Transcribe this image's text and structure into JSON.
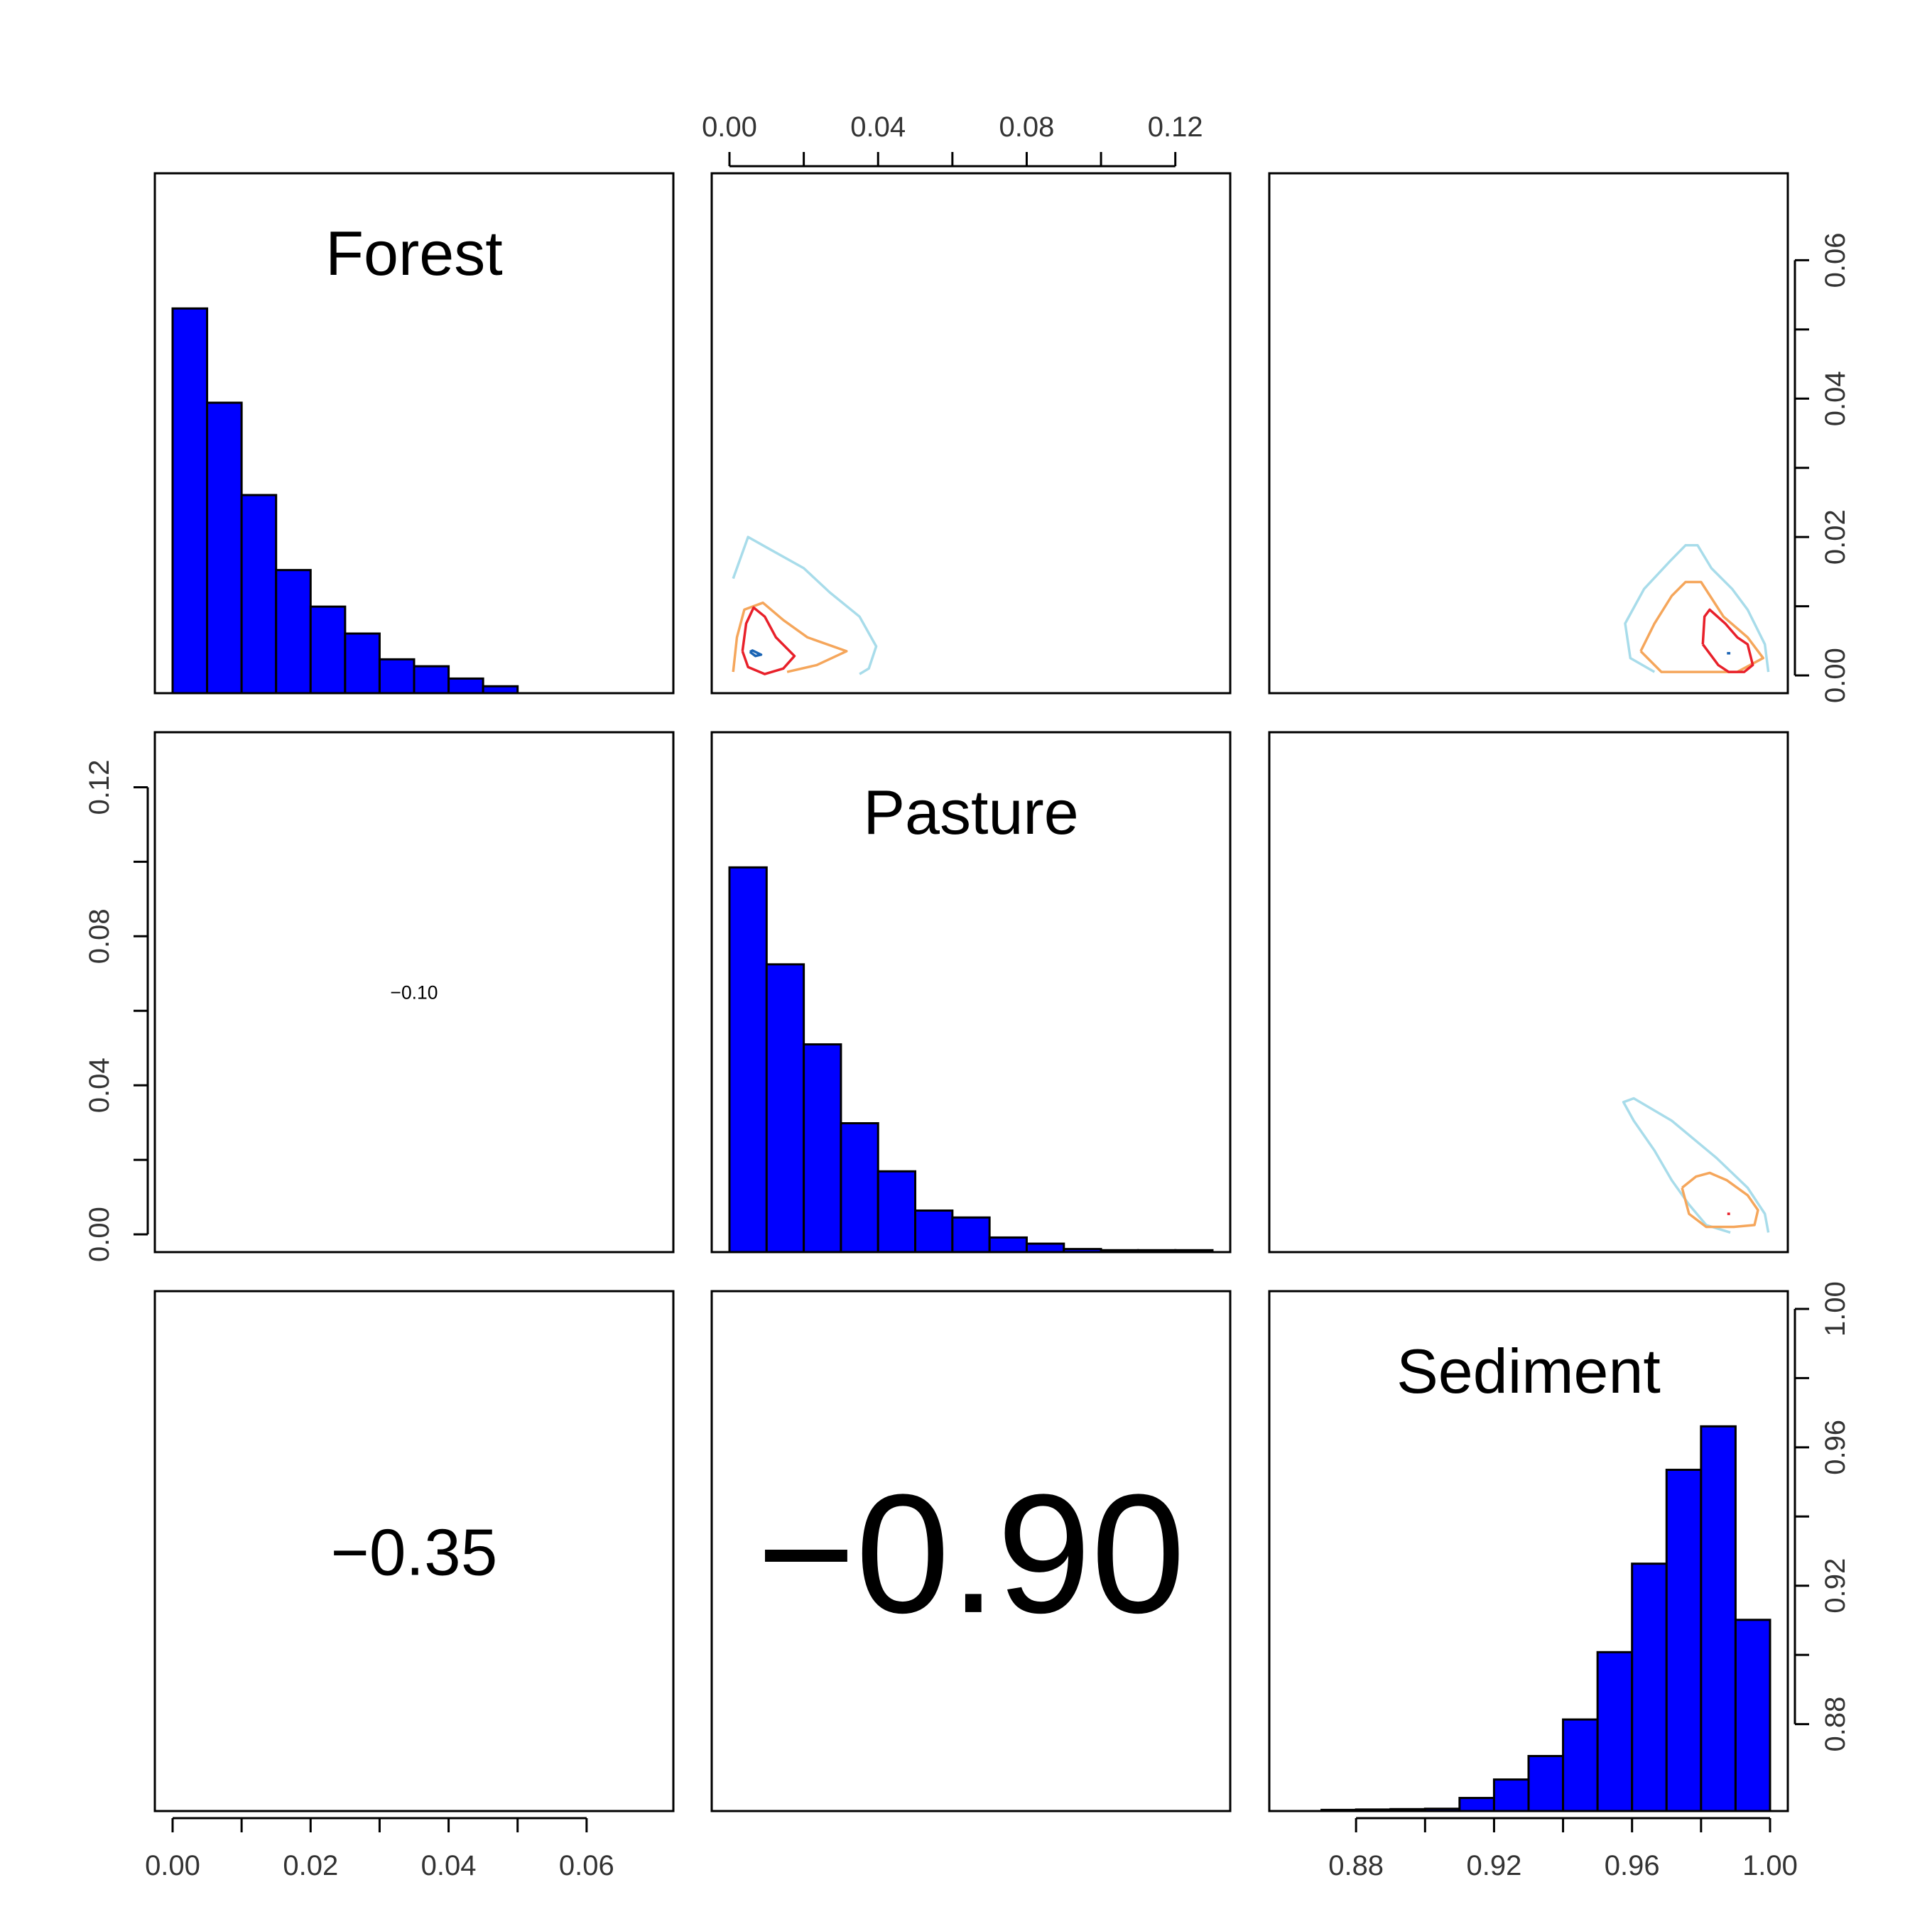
{
  "colors": {
    "bar_fill": "#0000ff",
    "contour_levels": [
      "#a8dcea",
      "#f5a65b",
      "#e8202a",
      "#1a64b4"
    ]
  },
  "chart_data": {
    "type": "pairs",
    "variables": [
      {
        "name": "Forest",
        "label": "Forest",
        "range": [
          0,
          0.07
        ],
        "ticks": [
          "0.00",
          "0.02",
          "0.04",
          "0.06"
        ],
        "tick_values": [
          0,
          0.02,
          0.04,
          0.06
        ],
        "hist": {
          "type": "bar",
          "bin_edges": [
            0,
            0.005,
            0.01,
            0.015,
            0.02,
            0.025,
            0.03,
            0.035,
            0.04,
            0.045,
            0.05
          ],
          "counts": [
            1000,
            755,
            515,
            320,
            225,
            155,
            88,
            70,
            38,
            18
          ]
        }
      },
      {
        "name": "Pasture",
        "label": "Pasture",
        "range": [
          0,
          0.13
        ],
        "ticks": [
          "0.00",
          "0.04",
          "0.08",
          "0.12"
        ],
        "tick_values": [
          0,
          0.04,
          0.08,
          0.12
        ],
        "hist": {
          "type": "bar",
          "bin_edges": [
            0,
            0.01,
            0.02,
            0.03,
            0.04,
            0.05,
            0.06,
            0.07,
            0.08,
            0.09,
            0.1,
            0.11,
            0.12,
            0.13
          ],
          "counts": [
            1000,
            748,
            540,
            335,
            210,
            108,
            90,
            38,
            22,
            8,
            5,
            5,
            5
          ]
        }
      },
      {
        "name": "Sediment",
        "label": "Sediment",
        "range": [
          0.86,
          1.0
        ],
        "ticks": [
          "0.88",
          "0.92",
          "0.96",
          "1.00"
        ],
        "tick_values": [
          0.88,
          0.92,
          0.96,
          1.0
        ],
        "hist": {
          "type": "bar",
          "bin_edges": [
            0.87,
            0.88,
            0.89,
            0.9,
            0.91,
            0.92,
            0.93,
            0.94,
            0.95,
            0.96,
            0.97,
            0.98,
            0.99,
            1.0
          ],
          "counts": [
            3,
            4,
            5,
            6,
            34,
            82,
            143,
            238,
            413,
            643,
            887,
            1000,
            497
          ]
        }
      }
    ],
    "correlations": [
      {
        "row": 1,
        "col": 0,
        "label": "−0.10",
        "value": -0.1
      },
      {
        "row": 2,
        "col": 0,
        "label": "−0.35",
        "value": -0.35
      },
      {
        "row": 2,
        "col": 1,
        "label": "−0.90",
        "value": -0.9
      }
    ],
    "contours": [
      {
        "row": 0,
        "col": 1,
        "x_var": "Pasture",
        "y_var": "Forest",
        "levels": [
          [
            [
              0.001,
              0.014
            ],
            [
              0.005,
              0.02
            ],
            [
              0.01,
              0.0185
            ],
            [
              0.02,
              0.0155
            ],
            [
              0.027,
              0.012
            ],
            [
              0.035,
              0.0085
            ],
            [
              0.0395,
              0.0042
            ],
            [
              0.0375,
              0.001
            ],
            [
              0.035,
              0.0002
            ]
          ],
          [
            [
              0.001,
              0.0005
            ],
            [
              0.002,
              0.0055
            ],
            [
              0.004,
              0.0095
            ],
            [
              0.009,
              0.0105
            ],
            [
              0.0145,
              0.008
            ],
            [
              0.021,
              0.0055
            ],
            [
              0.0315,
              0.0035
            ],
            [
              0.0235,
              0.0015
            ],
            [
              0.0155,
              0.0005
            ]
          ],
          [
            [
              0.0035,
              0.0035
            ],
            [
              0.0045,
              0.0075
            ],
            [
              0.0065,
              0.0098
            ],
            [
              0.0095,
              0.0085
            ],
            [
              0.0125,
              0.0055
            ],
            [
              0.0175,
              0.0028
            ],
            [
              0.0145,
              0.001
            ],
            [
              0.0095,
              0.0002
            ],
            [
              0.005,
              0.0012
            ],
            [
              0.0035,
              0.0035
            ]
          ],
          [
            [
              0.0055,
              0.0034
            ],
            [
              0.0062,
              0.0036
            ],
            [
              0.0085,
              0.003
            ],
            [
              0.007,
              0.0028
            ],
            [
              0.0055,
              0.0034
            ]
          ]
        ]
      },
      {
        "row": 0,
        "col": 2,
        "x_var": "Sediment",
        "y_var": "Forest",
        "levels": [
          [
            [
              0.9665,
              0.0005
            ],
            [
              0.9595,
              0.0025
            ],
            [
              0.958,
              0.0075
            ],
            [
              0.9635,
              0.0125
            ],
            [
              0.971,
              0.0165
            ],
            [
              0.9755,
              0.0188
            ],
            [
              0.979,
              0.0188
            ],
            [
              0.983,
              0.0155
            ],
            [
              0.989,
              0.0125
            ],
            [
              0.9935,
              0.0095
            ],
            [
              0.9985,
              0.0045
            ],
            [
              0.9995,
              0.0005
            ]
          ],
          [
            [
              0.9625,
              0.0035
            ],
            [
              0.9665,
              0.0075
            ],
            [
              0.9715,
              0.0115
            ],
            [
              0.9755,
              0.0135
            ],
            [
              0.98,
              0.0135
            ],
            [
              0.9865,
              0.0085
            ],
            [
              0.9935,
              0.0055
            ],
            [
              0.998,
              0.0025
            ],
            [
              0.9905,
              0.0005
            ],
            [
              0.9795,
              0.0005
            ],
            [
              0.9685,
              0.0005
            ],
            [
              0.9625,
              0.0035
            ]
          ],
          [
            [
              0.9805,
              0.0045
            ],
            [
              0.981,
              0.0085
            ],
            [
              0.9825,
              0.0095
            ],
            [
              0.987,
              0.0075
            ],
            [
              0.9905,
              0.0055
            ],
            [
              0.9935,
              0.0045
            ],
            [
              0.995,
              0.0015
            ],
            [
              0.9925,
              0.0005
            ],
            [
              0.988,
              0.0005
            ],
            [
              0.985,
              0.0015
            ],
            [
              0.9805,
              0.0045
            ]
          ],
          [
            [
              0.9875,
              0.0032
            ],
            [
              0.9885,
              0.0032
            ]
          ]
        ]
      },
      {
        "row": 1,
        "col": 2,
        "x_var": "Sediment",
        "y_var": "Pasture",
        "levels": [
          [
            [
              0.9885,
              0.0005
            ],
            [
              0.9815,
              0.0025
            ],
            [
              0.9765,
              0.008
            ],
            [
              0.9715,
              0.0145
            ],
            [
              0.9665,
              0.0225
            ],
            [
              0.9605,
              0.0305
            ],
            [
              0.9575,
              0.0355
            ],
            [
              0.9605,
              0.0365
            ],
            [
              0.9715,
              0.0305
            ],
            [
              0.9845,
              0.0205
            ],
            [
              0.9935,
              0.0125
            ],
            [
              0.9985,
              0.0055
            ],
            [
              0.9995,
              0.0005
            ]
          ],
          [
            [
              0.9745,
              0.0125
            ],
            [
              0.9785,
              0.0155
            ],
            [
              0.9825,
              0.0165
            ],
            [
              0.9875,
              0.0145
            ],
            [
              0.9935,
              0.0105
            ],
            [
              0.9965,
              0.0065
            ],
            [
              0.9955,
              0.0025
            ],
            [
              0.9895,
              0.002
            ],
            [
              0.9815,
              0.002
            ],
            [
              0.9765,
              0.0055
            ],
            [
              0.9745,
              0.0125
            ]
          ],
          [
            [
              0.9876,
              0.0055
            ],
            [
              0.9884,
              0.0055
            ]
          ]
        ]
      }
    ]
  }
}
